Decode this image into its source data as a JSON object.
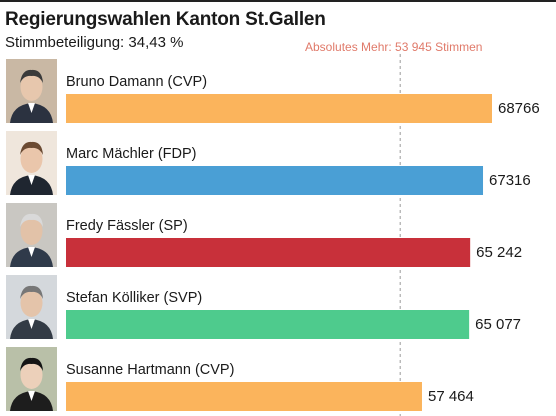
{
  "header": {
    "title": "Regierungswahlen Kanton St.Gallen",
    "turnout": "Stimmbeteiligung: 34,43 %",
    "majority_label": "Absolutes Mehr: 53 945 Stimmen"
  },
  "chart_data": {
    "type": "bar",
    "orientation": "horizontal",
    "title": "Regierungswahlen Kanton St.Gallen",
    "subtitle": "Stimmbeteiligung: 34,43 %",
    "categories": [
      "Bruno Damann (CVP)",
      "Marc Mächler (FDP)",
      "Fredy Fässler (SP)",
      "Stefan Kölliker (SVP)",
      "Susanne Hartmann (CVP)"
    ],
    "values": [
      68766,
      67316,
      65242,
      65077,
      57464
    ],
    "value_labels": [
      "68766",
      "67316",
      "65 242",
      "65 077",
      "57 464"
    ],
    "bar_colors": [
      "#fbb45c",
      "#4a9fd5",
      "#c8303a",
      "#4ecb8d",
      "#fbb45c"
    ],
    "reference_line": {
      "value": 53945,
      "label": "Absolutes Mehr: 53 945 Stimmen",
      "color": "#e07a6a"
    },
    "grid": false,
    "legend": "none"
  }
}
